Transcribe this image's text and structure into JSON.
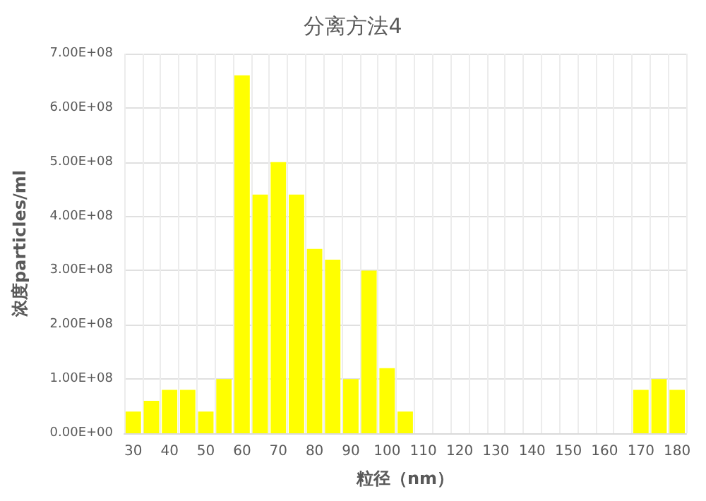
{
  "chart_data": {
    "type": "bar",
    "title": "分离方法4",
    "xlabel": "粒径（nm）",
    "ylabel": "浓度particles/ml",
    "categories": [
      "30",
      null,
      "40",
      null,
      "50",
      null,
      "60",
      null,
      "70",
      null,
      "80",
      null,
      "90",
      null,
      "100",
      null,
      "110",
      null,
      "120",
      null,
      "130",
      null,
      "140",
      null,
      "150",
      null,
      "160",
      null,
      "170",
      null,
      "180"
    ],
    "values": [
      40000000,
      60000000,
      80000000,
      80000000,
      40000000,
      100000000,
      660000000,
      440000000,
      500000000,
      440000000,
      340000000,
      320000000,
      100000000,
      300000000,
      120000000,
      40000000,
      0,
      0,
      0,
      0,
      0,
      0,
      0,
      0,
      0,
      0,
      0,
      0,
      80000000,
      100000000,
      80000000
    ],
    "color": "#ffff00",
    "ylim": [
      0,
      700000000
    ],
    "yticks": [
      {
        "value": 0,
        "label": "0.00E+00"
      },
      {
        "value": 100000000,
        "label": "1.00E+08"
      },
      {
        "value": 200000000,
        "label": "2.00E+08"
      },
      {
        "value": 300000000,
        "label": "3.00E+08"
      },
      {
        "value": 400000000,
        "label": "4.00E+08"
      },
      {
        "value": 500000000,
        "label": "5.00E+08"
      },
      {
        "value": 600000000,
        "label": "6.00E+08"
      },
      {
        "value": 700000000,
        "label": "7.00E+08"
      }
    ],
    "grid": true
  }
}
